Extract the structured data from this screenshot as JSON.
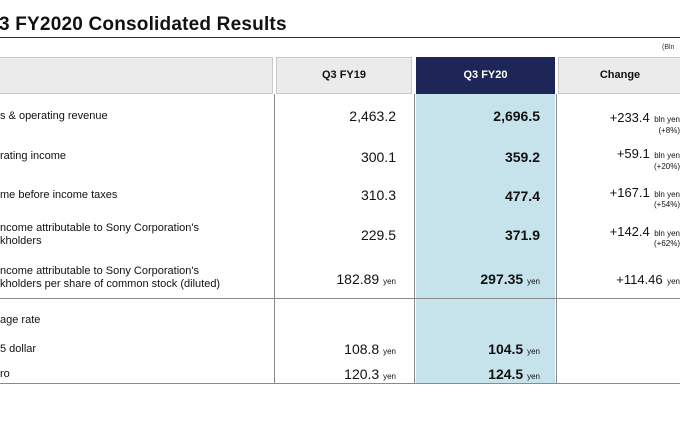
{
  "title": "3 FY2020  Consolidated Results",
  "unit_note": "(Bln",
  "columns": [
    "Q3 FY19",
    "Q3 FY20",
    "Change"
  ],
  "rows": [
    {
      "label": [
        "s & operating revenue"
      ],
      "fy19": "2,463.2",
      "fy20": "2,696.5",
      "change": "+233.4",
      "change_unit": "bln yen",
      "change_pct": "(+8%)"
    },
    {
      "label": [
        "rating income"
      ],
      "fy19": "300.1",
      "fy20": "359.2",
      "change": "+59.1",
      "change_unit": "bln yen",
      "change_pct": "(+20%)"
    },
    {
      "label": [
        "me before income taxes"
      ],
      "fy19": "310.3",
      "fy20": "477.4",
      "change": "+167.1",
      "change_unit": "bln yen",
      "change_pct": "(+54%)"
    },
    {
      "label": [
        "ncome attributable to Sony Corporation's",
        "kholders"
      ],
      "fy19": "229.5",
      "fy20": "371.9",
      "change": "+142.4",
      "change_unit": "bln yen",
      "change_pct": "(+62%)"
    },
    {
      "label": [
        "ncome attributable to Sony Corporation's",
        "kholders per share of common stock (diluted)"
      ],
      "fy19": "182.89",
      "fy19_unit": "yen",
      "fy20": "297.35",
      "fy20_unit": "yen",
      "change": "+114.46",
      "change_unit": "yen"
    }
  ],
  "exchange": {
    "heading": "age rate",
    "rows": [
      {
        "label": "5 dollar",
        "fy19": "108.8",
        "fy20": "104.5",
        "unit": "yen"
      },
      {
        "label": "ro",
        "fy19": "120.3",
        "fy20": "124.5",
        "unit": "yen"
      }
    ]
  },
  "colors": {
    "header_grey": "#ebebeb",
    "header_navy": "#1d2657",
    "highlight": "#c6e3ec"
  }
}
